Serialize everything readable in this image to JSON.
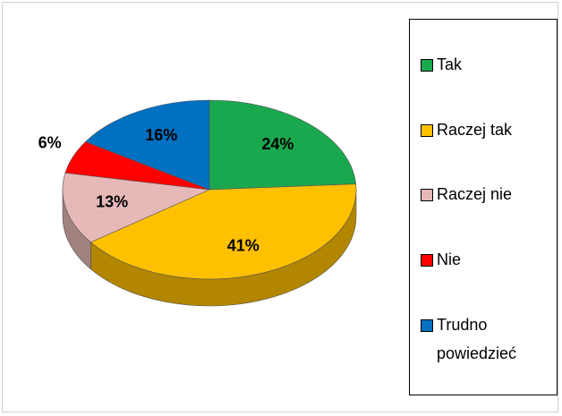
{
  "chart_data": {
    "type": "pie",
    "categories": [
      "Tak",
      "Raczej tak",
      "Raczej nie",
      "Nie",
      "Trudno powiedzieć"
    ],
    "values": [
      24,
      41,
      13,
      6,
      16
    ],
    "value_labels": [
      "24%",
      "41%",
      "13%",
      "6%",
      "16%"
    ],
    "colors": [
      "#1aa84f",
      "#ffc000",
      "#e6b9b8",
      "#ff0000",
      "#0070c0"
    ],
    "legend": "right"
  }
}
